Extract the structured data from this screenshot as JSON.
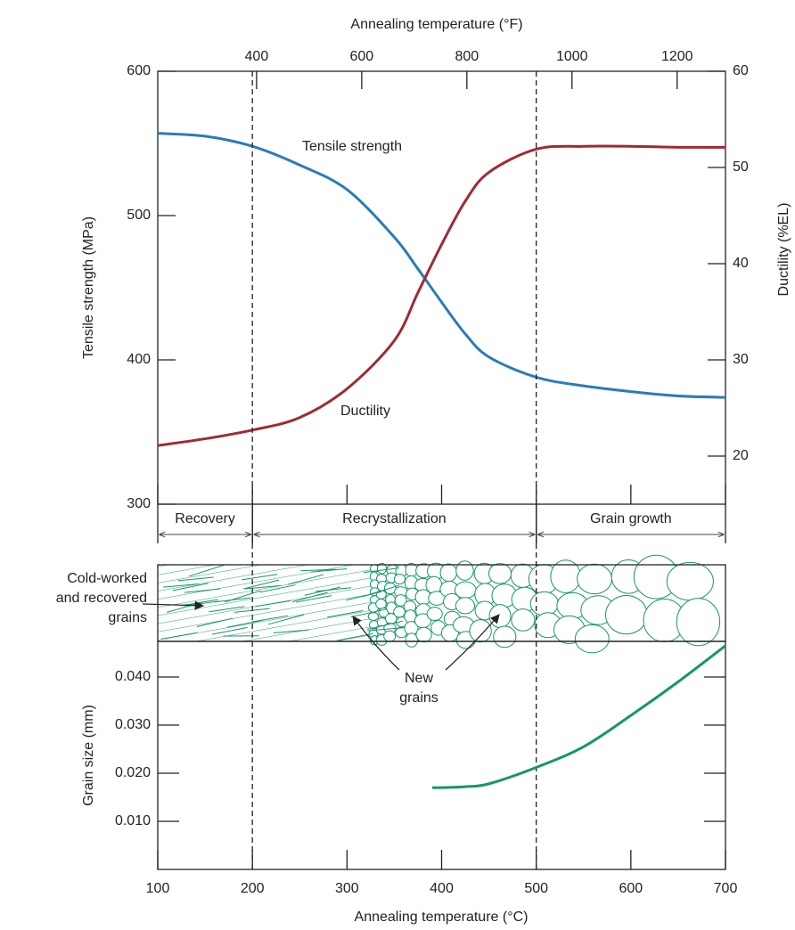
{
  "chart_data": [
    {
      "type": "line",
      "x2label": "Annealing temperature (°F)",
      "ylabel": "Tensile strength (MPa)",
      "y2label": "Ductility (%EL)",
      "xlim": [
        100,
        700
      ],
      "x2lim": [
        212,
        1292
      ],
      "x2ticks": [
        400,
        600,
        800,
        1000,
        1200
      ],
      "ylim": [
        300,
        600
      ],
      "yticks": [
        300,
        400,
        500,
        600
      ],
      "y2lim": [
        15,
        60
      ],
      "y2ticks": [
        20,
        30,
        40,
        50,
        60
      ],
      "x": [
        100,
        150,
        200,
        250,
        300,
        350,
        375,
        400,
        425,
        450,
        500,
        550,
        600,
        650,
        700
      ],
      "series": [
        {
          "name": "Tensile strength",
          "color": "#2b7bba",
          "values": [
            557,
            555,
            548,
            535,
            518,
            485,
            463,
            440,
            418,
            402,
            388,
            382,
            378,
            375,
            374
          ]
        },
        {
          "name": "Ductility",
          "color": "#9e2a36",
          "axis": "y2",
          "values": [
            21.1,
            21.8,
            22.7,
            24,
            27,
            32,
            37,
            42,
            46.5,
            49.5,
            51.9,
            52.2,
            52.2,
            52.1,
            52.1
          ]
        }
      ],
      "phases": [
        {
          "label": "Recovery",
          "start": 100,
          "end": 200
        },
        {
          "label": "Recrystallization",
          "start": 200,
          "end": 500
        },
        {
          "label": "Grain growth",
          "start": 500,
          "end": 700
        }
      ],
      "annotations": [
        {
          "lines": [
            "Cold-worked",
            "and recovered",
            "grains"
          ]
        },
        {
          "lines": [
            "New",
            "grains"
          ]
        }
      ]
    },
    {
      "type": "line",
      "xlabel": "Annealing temperature (°C)",
      "ylabel": "Grain size (mm)",
      "xlim": [
        100,
        700
      ],
      "xticks": [
        100,
        200,
        300,
        400,
        500,
        600,
        700
      ],
      "ylim": [
        0,
        0.0474
      ],
      "yticks": [
        {
          "value": 0.01,
          "label": "0.010"
        },
        {
          "value": 0.02,
          "label": "0.020"
        },
        {
          "value": 0.03,
          "label": "0.030"
        },
        {
          "value": 0.04,
          "label": "0.040"
        }
      ],
      "x": [
        390,
        400,
        425,
        450,
        500,
        550,
        600,
        650,
        700
      ],
      "series": [
        {
          "color": "#17956b",
          "values": [
            0.017,
            0.017,
            0.0172,
            0.0178,
            0.0212,
            0.0255,
            0.032,
            0.039,
            0.0465
          ]
        }
      ]
    }
  ]
}
